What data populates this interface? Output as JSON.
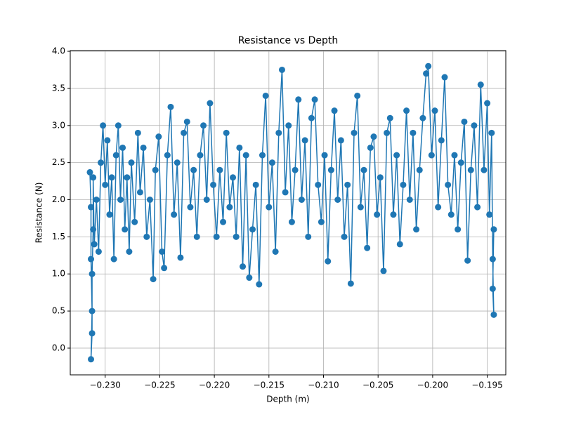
{
  "chart_data": {
    "type": "line",
    "title": "Resistance vs Depth",
    "x_label": "Depth (m)",
    "y_label": "Resistance (N)",
    "grid": true,
    "markers": true,
    "xlim": [
      -0.2332,
      -0.1933
    ],
    "ylim": [
      -0.36,
      4.01
    ],
    "xticks": [
      {
        "value": -0.23,
        "label": "−0.230"
      },
      {
        "value": -0.225,
        "label": "−0.225"
      },
      {
        "value": -0.22,
        "label": "−0.220"
      },
      {
        "value": -0.215,
        "label": "−0.215"
      },
      {
        "value": -0.21,
        "label": "−0.210"
      },
      {
        "value": -0.205,
        "label": "−0.205"
      },
      {
        "value": -0.2,
        "label": "−0.200"
      },
      {
        "value": -0.195,
        "label": "−0.195"
      }
    ],
    "yticks": [
      {
        "value": 0,
        "label": "0.0"
      },
      {
        "value": 0.5,
        "label": "0.5"
      },
      {
        "value": 1,
        "label": "1.0"
      },
      {
        "value": 1.5,
        "label": "1.5"
      },
      {
        "value": 2,
        "label": "2.0"
      },
      {
        "value": 2.5,
        "label": "2.5"
      },
      {
        "value": 3,
        "label": "3.0"
      },
      {
        "value": 3.5,
        "label": "3.5"
      },
      {
        "value": 4,
        "label": "4.0"
      }
    ],
    "x": [
      -0.2314,
      -0.2313,
      -0.2313,
      -0.2312,
      -0.2313,
      -0.2312,
      -0.2312,
      -0.2311,
      -0.2311,
      -0.231,
      -0.2308,
      -0.2306,
      -0.2304,
      -0.2302,
      -0.23,
      -0.2298,
      -0.2296,
      -0.2294,
      -0.2292,
      -0.229,
      -0.2288,
      -0.2286,
      -0.2284,
      -0.2282,
      -0.228,
      -0.2278,
      -0.2276,
      -0.2273,
      -0.227,
      -0.2268,
      -0.2265,
      -0.2262,
      -0.2259,
      -0.2256,
      -0.2254,
      -0.2251,
      -0.2248,
      -0.2246,
      -0.2243,
      -0.224,
      -0.2237,
      -0.2234,
      -0.2231,
      -0.2228,
      -0.2225,
      -0.2222,
      -0.2219,
      -0.2216,
      -0.2213,
      -0.221,
      -0.2207,
      -0.2204,
      -0.2201,
      -0.2198,
      -0.2195,
      -0.2192,
      -0.2189,
      -0.2186,
      -0.2183,
      -0.218,
      -0.2177,
      -0.2174,
      -0.2171,
      -0.2168,
      -0.2165,
      -0.2162,
      -0.2159,
      -0.2156,
      -0.2153,
      -0.215,
      -0.2147,
      -0.2144,
      -0.2141,
      -0.2138,
      -0.2135,
      -0.2132,
      -0.2129,
      -0.2126,
      -0.2123,
      -0.212,
      -0.2117,
      -0.2114,
      -0.2111,
      -0.2108,
      -0.2105,
      -0.2102,
      -0.2099,
      -0.2096,
      -0.2093,
      -0.209,
      -0.2087,
      -0.2084,
      -0.2081,
      -0.2078,
      -0.2075,
      -0.2072,
      -0.2069,
      -0.2066,
      -0.2063,
      -0.206,
      -0.2057,
      -0.2054,
      -0.2051,
      -0.2048,
      -0.2045,
      -0.2042,
      -0.2039,
      -0.2036,
      -0.2033,
      -0.203,
      -0.2027,
      -0.2024,
      -0.2021,
      -0.2018,
      -0.2015,
      -0.2012,
      -0.2009,
      -0.2006,
      -0.2004,
      -0.2001,
      -0.1998,
      -0.1995,
      -0.1992,
      -0.1989,
      -0.1986,
      -0.1983,
      -0.198,
      -0.1977,
      -0.1974,
      -0.1971,
      -0.1968,
      -0.1965,
      -0.1962,
      -0.1959,
      -0.1956,
      -0.1953,
      -0.195,
      -0.1948,
      -0.1946,
      -0.1945,
      -0.1944,
      -0.1945,
      -0.1944
    ],
    "series": [
      {
        "name": "Resistance",
        "color": "#1f77b4",
        "values": [
          2.37,
          1.9,
          1.2,
          0.5,
          -0.15,
          0.2,
          1.0,
          1.6,
          2.3,
          1.4,
          2.0,
          1.3,
          2.5,
          3.0,
          2.2,
          2.8,
          1.8,
          2.3,
          1.2,
          2.6,
          3.0,
          2.0,
          2.7,
          1.6,
          2.3,
          1.3,
          2.5,
          1.7,
          2.9,
          2.1,
          2.7,
          1.5,
          2.0,
          0.93,
          2.4,
          2.85,
          1.3,
          1.08,
          2.6,
          3.25,
          1.8,
          2.5,
          1.22,
          2.9,
          3.05,
          1.9,
          2.4,
          1.5,
          2.6,
          3.0,
          2.0,
          3.3,
          2.2,
          1.5,
          2.4,
          1.7,
          2.9,
          1.9,
          2.3,
          1.5,
          2.7,
          1.1,
          2.6,
          0.95,
          1.6,
          2.2,
          0.86,
          2.6,
          3.4,
          1.9,
          2.5,
          1.3,
          2.9,
          3.75,
          2.1,
          3.0,
          1.7,
          2.4,
          3.35,
          2.0,
          2.8,
          1.5,
          3.1,
          3.35,
          2.2,
          1.7,
          2.6,
          1.17,
          2.4,
          3.2,
          2.0,
          2.8,
          1.5,
          2.2,
          0.87,
          2.9,
          3.4,
          1.9,
          2.4,
          1.35,
          2.7,
          2.85,
          1.8,
          2.3,
          1.04,
          2.9,
          3.1,
          1.8,
          2.6,
          1.4,
          2.2,
          3.2,
          2.0,
          2.9,
          1.6,
          2.4,
          3.1,
          3.7,
          3.8,
          2.6,
          3.2,
          1.9,
          2.8,
          3.65,
          2.2,
          1.8,
          2.6,
          1.6,
          2.5,
          3.05,
          1.18,
          2.4,
          3.0,
          1.9,
          3.55,
          2.4,
          3.3,
          1.8,
          2.9,
          1.2,
          0.45,
          0.8,
          1.6
        ]
      }
    ]
  }
}
